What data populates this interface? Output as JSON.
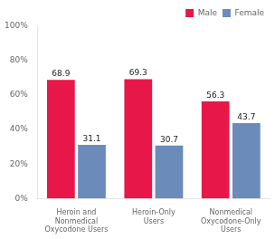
{
  "chart_data": {
    "type": "bar",
    "categories": [
      "Heroin and\nNonmedical\nOxycodone Users",
      "Heroin-Only\nUsers",
      "Nonmedical\nOxycodone-Only\nUsers"
    ],
    "series": [
      {
        "name": "Male",
        "color": "#e8174a",
        "values": [
          68.9,
          69.3,
          56.3
        ]
      },
      {
        "name": "Female",
        "color": "#6b8cba",
        "values": [
          31.1,
          30.7,
          43.7
        ]
      }
    ],
    "ylim": [
      0,
      100
    ],
    "yticks": [
      {
        "value": 0,
        "label": "0%"
      },
      {
        "value": 20,
        "label": "20%"
      },
      {
        "value": 40,
        "label": "40%"
      },
      {
        "value": 60,
        "label": "60%"
      },
      {
        "value": 80,
        "label": "80%"
      },
      {
        "value": 100,
        "label": "100%"
      }
    ],
    "grid": false,
    "legend": "upper right",
    "data_labels": true
  }
}
